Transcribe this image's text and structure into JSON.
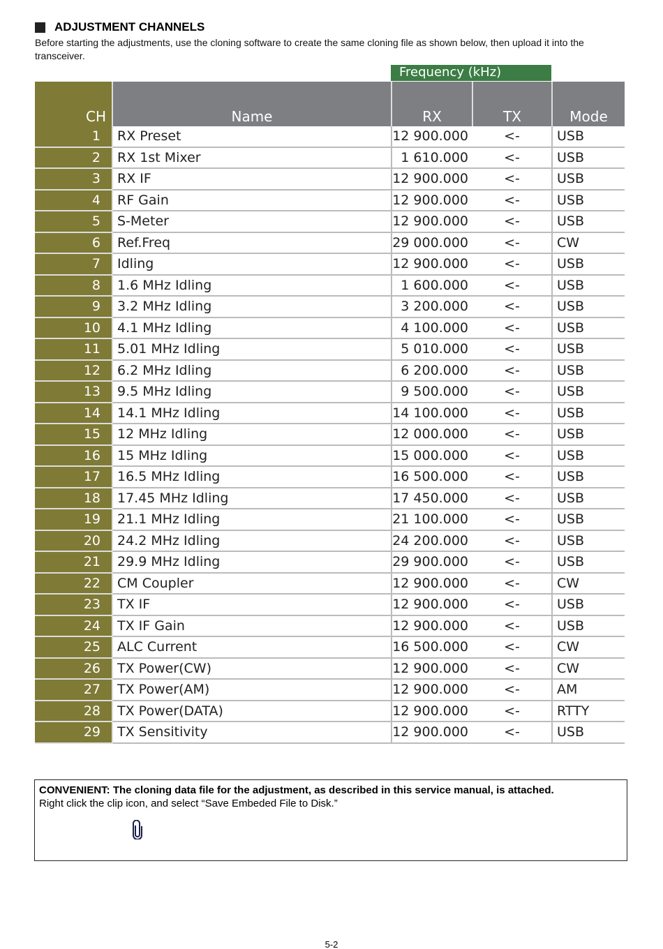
{
  "section_title": "ADJUSTMENT CHANNELS",
  "intro": "Before starting the adjustments, use the cloning software to create the same cloning file as shown below, then upload it into the transceiver.",
  "table": {
    "group_header": "Frequency (kHz)",
    "headers": {
      "ch": "CH",
      "name": "Name",
      "rx": "RX",
      "tx": "TX",
      "mode": "Mode"
    },
    "rows": [
      [
        "1",
        "RX Preset",
        "12 900.000",
        "<-",
        "USB"
      ],
      [
        "2",
        "RX 1st Mixer",
        "1 610.000",
        "<-",
        "USB"
      ],
      [
        "3",
        "RX IF",
        "12 900.000",
        "<-",
        "USB"
      ],
      [
        "4",
        "RF Gain",
        "12 900.000",
        "<-",
        "USB"
      ],
      [
        "5",
        "S-Meter",
        "12 900.000",
        "<-",
        "USB"
      ],
      [
        "6",
        "Ref.Freq",
        "29 000.000",
        "<-",
        "CW"
      ],
      [
        "7",
        "Idling",
        "12 900.000",
        "<-",
        "USB"
      ],
      [
        "8",
        "1.6 MHz Idling",
        "1 600.000",
        "<-",
        "USB"
      ],
      [
        "9",
        "3.2 MHz Idling",
        "3 200.000",
        "<-",
        "USB"
      ],
      [
        "10",
        "4.1 MHz Idling",
        "4 100.000",
        "<-",
        "USB"
      ],
      [
        "11",
        "5.01 MHz Idling",
        "5 010.000",
        "<-",
        "USB"
      ],
      [
        "12",
        "6.2 MHz Idling",
        "6 200.000",
        "<-",
        "USB"
      ],
      [
        "13",
        "9.5 MHz Idling",
        "9 500.000",
        "<-",
        "USB"
      ],
      [
        "14",
        "14.1 MHz Idling",
        "14 100.000",
        "<-",
        "USB"
      ],
      [
        "15",
        "12 MHz Idling",
        "12 000.000",
        "<-",
        "USB"
      ],
      [
        "16",
        "15 MHz Idling",
        "15 000.000",
        "<-",
        "USB"
      ],
      [
        "17",
        "16.5 MHz Idling",
        "16 500.000",
        "<-",
        "USB"
      ],
      [
        "18",
        "17.45 MHz Idling",
        "17 450.000",
        "<-",
        "USB"
      ],
      [
        "19",
        "21.1 MHz Idling",
        "21 100.000",
        "<-",
        "USB"
      ],
      [
        "20",
        "24.2 MHz Idling",
        "24 200.000",
        "<-",
        "USB"
      ],
      [
        "21",
        "29.9 MHz Idling",
        "29 900.000",
        "<-",
        "USB"
      ],
      [
        "22",
        "CM Coupler",
        "12 900.000",
        "<-",
        "CW"
      ],
      [
        "23",
        "TX IF",
        "12 900.000",
        "<-",
        "USB"
      ],
      [
        "24",
        "TX IF Gain",
        "12 900.000",
        "<-",
        "USB"
      ],
      [
        "25",
        "ALC Current",
        "16 500.000",
        "<-",
        "CW"
      ],
      [
        "26",
        "TX Power(CW)",
        "12 900.000",
        "<-",
        "CW"
      ],
      [
        "27",
        "TX Power(AM)",
        "12 900.000",
        "<-",
        "AM"
      ],
      [
        "28",
        "TX Power(DATA)",
        "12 900.000",
        "<-",
        "RTTY"
      ],
      [
        "29",
        "TX Sensitivity",
        "12 900.000",
        "<-",
        "USB"
      ]
    ]
  },
  "note": {
    "bold": "CONVENIENT: The cloning data file for the adjustment, as described in this service manual, is attached.",
    "text": "Right click the clip icon, and select “Save Embeded File to Disk.”"
  },
  "page_number": "5-2"
}
